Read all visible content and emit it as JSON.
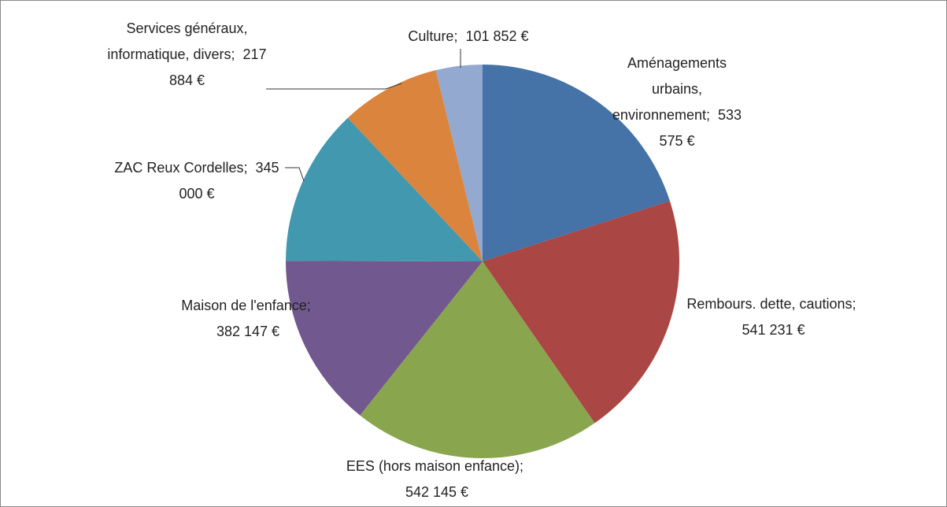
{
  "chart_data": {
    "type": "pie",
    "categories": [
      "Aménagements urbains, environnement",
      "Rembours. dette, cautions",
      "EES (hors maison enfance)",
      "Maison de l'enfance",
      "ZAC Reux Cordelles",
      "Services généraux, informatique, divers",
      "Culture"
    ],
    "values": [
      533575,
      541231,
      542145,
      382147,
      345000,
      217884,
      101852
    ],
    "value_labels": [
      "533 575 €",
      "541 231 €",
      "542 145 €",
      "382 147 €",
      "345 000 €",
      "217 884 €",
      "101 852 €"
    ],
    "label_separator": ";",
    "colors": [
      "#4572a7",
      "#aa4643",
      "#89a54e",
      "#71588f",
      "#4198af",
      "#db843d",
      "#93a9cf"
    ]
  }
}
